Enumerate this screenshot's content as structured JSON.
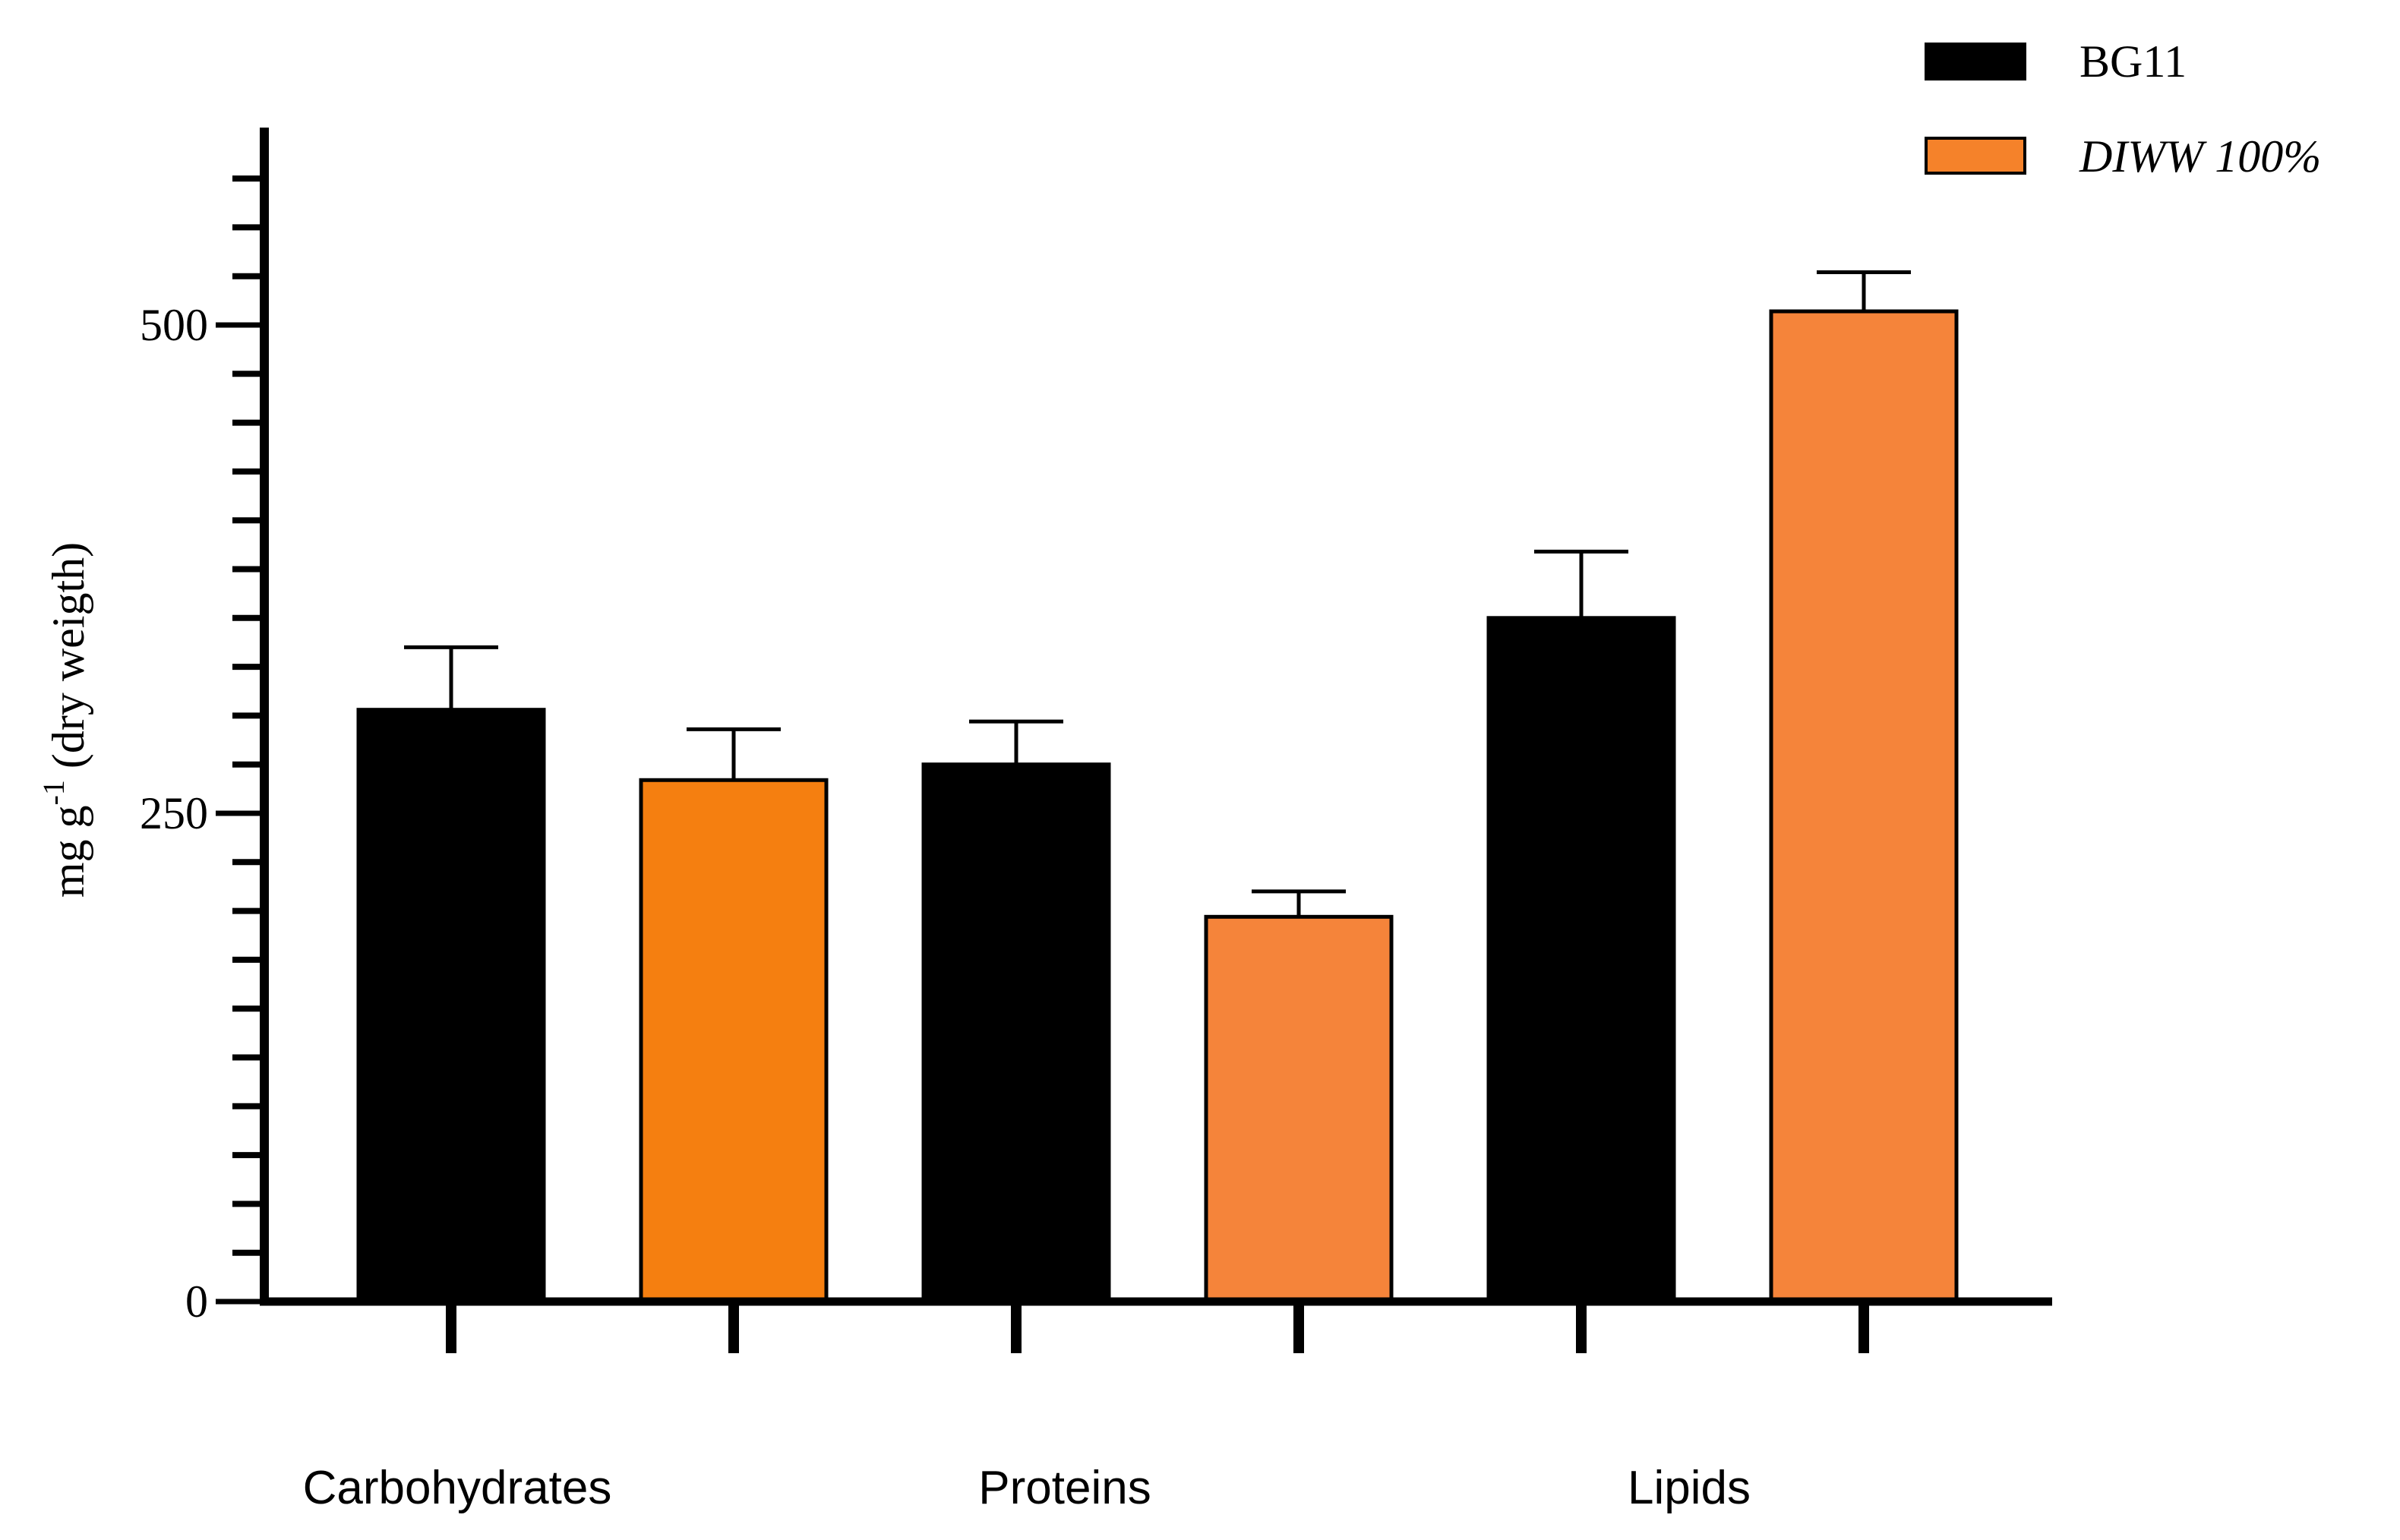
{
  "chart_data": {
    "type": "bar",
    "title": "",
    "xlabel": "",
    "ylabel": "mg g-1 (dry weigth)",
    "ylabel_parts": {
      "base": "mg g",
      "sup": "-1",
      "rest": " (dry weigth)"
    },
    "ylim": [
      0,
      575
    ],
    "yticks": [
      0,
      250,
      500
    ],
    "ytick_labels": [
      "0",
      "250",
      "500"
    ],
    "categories": [
      "Carbohydrates",
      "Proteins",
      "Lipids"
    ],
    "series": [
      {
        "name": "BG11",
        "color": "#000000",
        "values": [
          303,
          275,
          350
        ],
        "errors": [
          32,
          22,
          34
        ]
      },
      {
        "name": "DIWW 100%",
        "color": "#f5822a",
        "colors": [
          "#f57f10",
          "#f5843a",
          "#f5843a"
        ],
        "values": [
          267,
          197,
          507
        ],
        "errors": [
          26,
          13,
          20
        ]
      }
    ],
    "legend": {
      "position": "top-right",
      "italic": [
        false,
        true
      ]
    }
  }
}
